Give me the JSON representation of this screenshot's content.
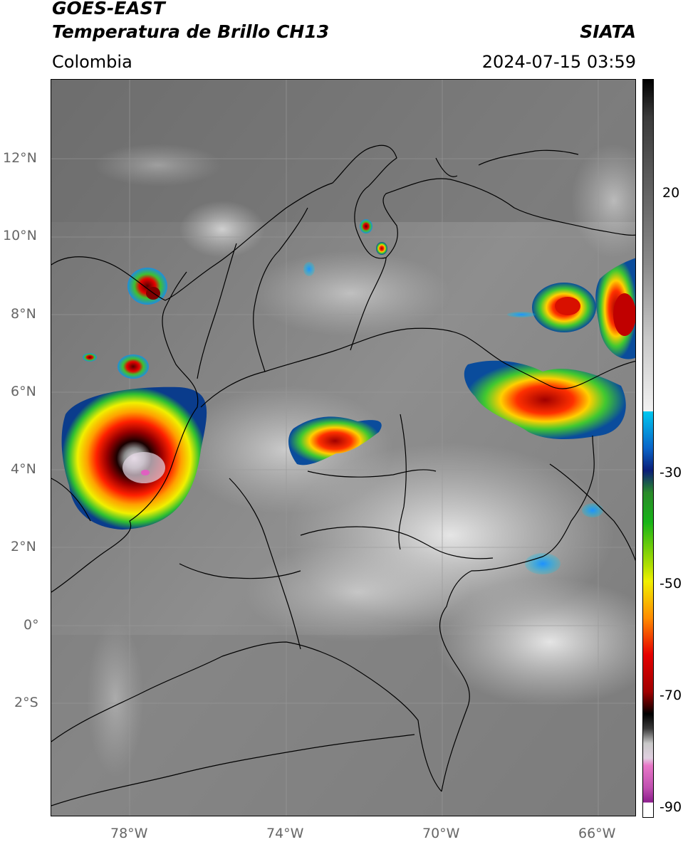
{
  "header": {
    "satellite": "GOES-EAST",
    "product": "Temperatura de Brillo CH13",
    "region": "Colombia",
    "agency": "SIATA",
    "datetime": "2024-07-15 03:59"
  },
  "map": {
    "latitude_ticks": [
      "12°N",
      "10°N",
      "8°N",
      "6°N",
      "4°N",
      "2°N",
      "0°",
      "2°S"
    ],
    "longitude_ticks": [
      "78°W",
      "74°W",
      "70°W",
      "66°W"
    ],
    "graticule_color": "#9a9a9a",
    "coastline_color": "#000000"
  },
  "colorbar": {
    "tick_labels": [
      "20",
      "-30",
      "-50",
      "-70",
      "-90"
    ],
    "colors": [
      "#000000",
      "#8a8a8a",
      "#f2f2f2",
      "#00c8f0",
      "#0a1e78",
      "#18b418",
      "#f0f000",
      "#ff8c00",
      "#e60000",
      "#5a0000",
      "#000000",
      "#c8c8c8",
      "#e878c8",
      "#8c1e8c",
      "#ffffff"
    ]
  }
}
